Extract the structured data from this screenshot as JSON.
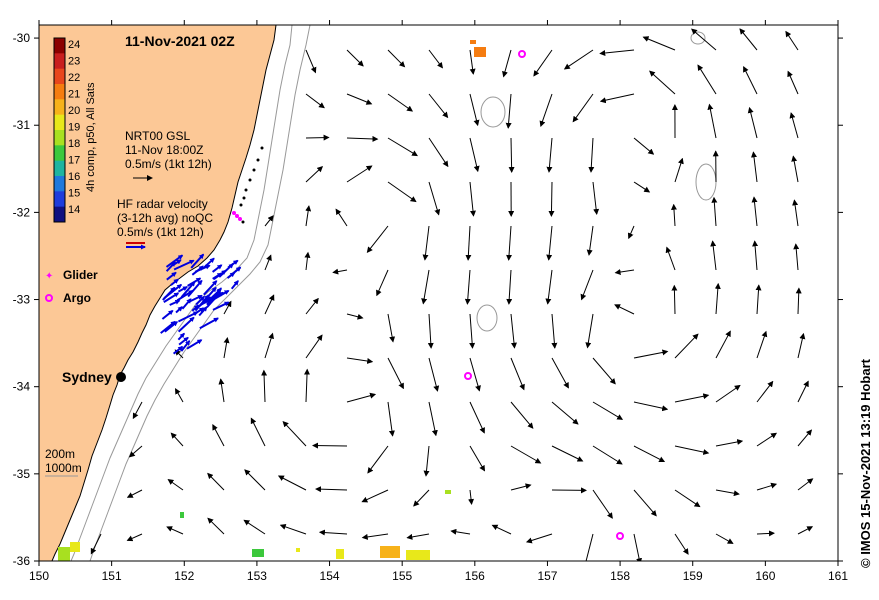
{
  "title": "11-Nov-2021 02Z",
  "colorbar": {
    "label": "4h comp, p50, All Sats",
    "ticks": [
      "24",
      "23",
      "22",
      "21",
      "20",
      "19",
      "18",
      "17",
      "16",
      "15",
      "14"
    ],
    "colors": [
      "#8b0000",
      "#c81e1e",
      "#e8461c",
      "#f57c10",
      "#f7b21a",
      "#e8e81a",
      "#a8e020",
      "#3cc83c",
      "#1eb4a0",
      "#1e78dc",
      "#1e3cdc",
      "#101080"
    ]
  },
  "gsl_note": [
    "NRT00 GSL",
    "11-Nov 18:00Z",
    "0.5m/s (1kt 12h)"
  ],
  "hf_note": [
    "HF radar velocity",
    "(3-12h avg) noQC",
    "0.5m/s (1kt 12h)"
  ],
  "legend": {
    "glider": "Glider",
    "argo": "Argo"
  },
  "city": "Sydney",
  "depth_legend": [
    "200m",
    "1000m"
  ],
  "credit": "© IMOS 15-Nov-2021 13:19 Hobart",
  "axes": {
    "xticks": [
      "150",
      "151",
      "152",
      "153",
      "154",
      "155",
      "156",
      "157",
      "158",
      "159",
      "160",
      "161"
    ],
    "yticks": [
      "-30",
      "-31",
      "-32",
      "-33",
      "-34",
      "-35",
      "-36"
    ],
    "xlim": [
      150,
      161
    ],
    "ylim": [
      -36,
      -29.85
    ]
  },
  "colors": {
    "land": "#fcc896",
    "coast": "#000000",
    "isobath": "#999999",
    "current_arrow": "#000000",
    "hf_arrow": "#0000dd",
    "glider": "#ff00ff",
    "argo": "#ff00ff"
  }
}
